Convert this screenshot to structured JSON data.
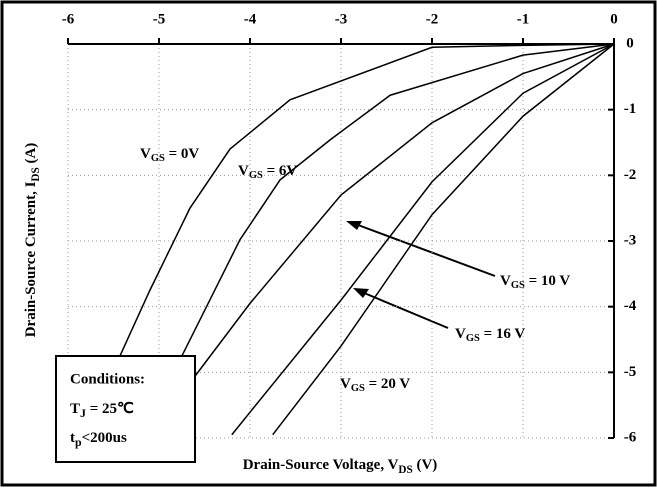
{
  "chart_data": {
    "type": "line",
    "x_label": [
      "Drain-Source Voltage, V",
      "DS",
      " (V)"
    ],
    "y_label": [
      "Drain-Source Current, I",
      "DS",
      " (A)"
    ],
    "xlim": [
      -6,
      0
    ],
    "xticks": [
      -6,
      -5,
      -4,
      -3,
      -2,
      -1,
      0
    ],
    "ylim": [
      -6,
      0
    ],
    "yticks": [
      0,
      -1,
      -2,
      -3,
      -4,
      -5,
      -6
    ],
    "grid": true,
    "color": "#000000",
    "series": [
      {
        "label": [
          "V",
          "GS",
          " = 0V"
        ],
        "x": [
          0,
          -1,
          -2,
          -3.56,
          -4.22,
          -4.66,
          -5.1,
          -5.6,
          -5.8
        ],
        "values": [
          0,
          -0.02,
          -0.05,
          -0.85,
          -1.6,
          -2.5,
          -3.75,
          -5.27,
          -6
        ]
      },
      {
        "label": [
          "V",
          "GS",
          " = 6V"
        ],
        "x": [
          0,
          -1,
          -2.46,
          -3.12,
          -3.67,
          -4.11,
          -4.55,
          -4.99,
          -5.1
        ],
        "values": [
          0,
          -0.17,
          -0.78,
          -1.46,
          -2.07,
          -2.98,
          -4.2,
          -5.42,
          -5.7
        ]
      },
      {
        "label": [
          "V",
          "GS",
          " = 10 V"
        ],
        "x": [
          0,
          -1,
          -2,
          -3,
          -4,
          -4.6
        ],
        "values": [
          0,
          -0.45,
          -1.2,
          -2.3,
          -3.95,
          -5.05
        ]
      },
      {
        "label": [
          "V",
          "GS",
          " = 16 V"
        ],
        "x": [
          0,
          -1,
          -2,
          -3,
          -4.2
        ],
        "values": [
          0,
          -0.75,
          -2.1,
          -3.9,
          -5.95
        ]
      },
      {
        "label": [
          "V",
          "GS",
          " = 20 V"
        ],
        "x": [
          0,
          -1,
          -2,
          -3,
          -3.75
        ],
        "values": [
          0,
          -1.1,
          -2.6,
          -4.6,
          -5.95
        ]
      }
    ],
    "conditions": {
      "title": "Conditions:",
      "lines": [
        [
          "T",
          "J",
          " = 25℃"
        ],
        [
          "t",
          "p",
          "<200us"
        ]
      ]
    }
  }
}
